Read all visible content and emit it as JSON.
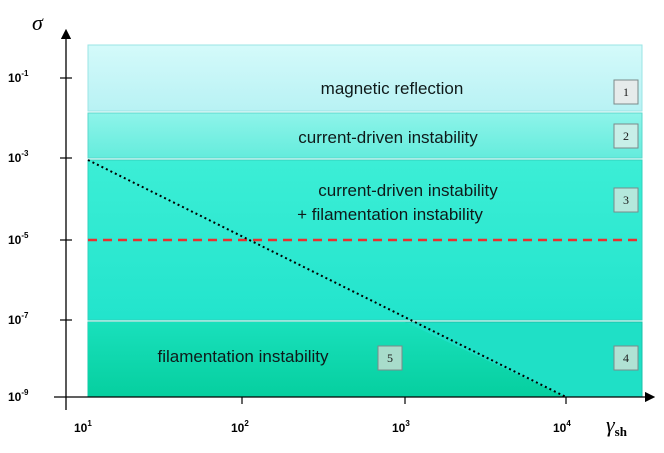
{
  "axes": {
    "x_label": "γ",
    "x_label_subscript": "sh",
    "y_label": "σ",
    "x_ticks": [
      {
        "base": "10",
        "exp": "1"
      },
      {
        "base": "10",
        "exp": "2"
      },
      {
        "base": "10",
        "exp": "3"
      },
      {
        "base": "10",
        "exp": "4"
      }
    ],
    "y_ticks": [
      {
        "base": "10",
        "exp": "-1"
      },
      {
        "base": "10",
        "exp": "-3"
      },
      {
        "base": "10",
        "exp": "-5"
      },
      {
        "base": "10",
        "exp": "-7"
      },
      {
        "base": "10",
        "exp": "-9"
      }
    ]
  },
  "regions": [
    {
      "id": "1",
      "lines": [
        "magnetic reflection"
      ],
      "color": "#c6f6f7"
    },
    {
      "id": "2",
      "lines": [
        "current-driven instability"
      ],
      "color": "#78f0e3"
    },
    {
      "id": "3",
      "lines": [
        "current-driven instability",
        "+ filamentation instability"
      ],
      "color": "#2ee8d0"
    },
    {
      "id": "4",
      "lines": [],
      "color": "#1fe2c8"
    },
    {
      "id": "5",
      "lines": [
        "filamentation instability"
      ],
      "color": "#10d9b0"
    }
  ],
  "boundaries": {
    "dashed_line": {
      "color": "#e83030",
      "sigma": "10^-5"
    },
    "dotted_line": {
      "color": "#000000",
      "from": {
        "gamma": "10^1",
        "sigma": "10^-3"
      },
      "to": {
        "gamma": "10^4",
        "sigma": "10^-9"
      }
    }
  }
}
